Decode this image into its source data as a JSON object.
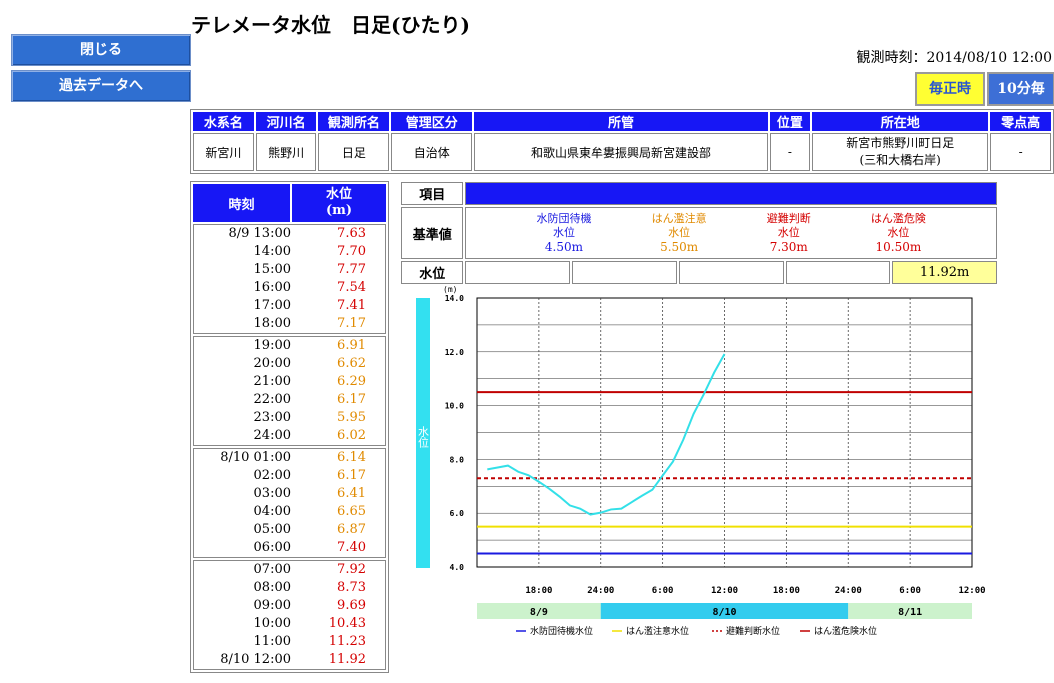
{
  "sidebar": {
    "close_label": "閉じる",
    "past_label": "過去データへ"
  },
  "page": {
    "title": "テレメータ水位　日足(ひたり)",
    "observed_at": "観測時刻：2014/08/10 12:00"
  },
  "toggle": {
    "hourly_label": "毎正時",
    "tenmin_label": "10分毎"
  },
  "info": {
    "headers": [
      "水系名",
      "河川名",
      "観測所名",
      "管理区分",
      "所管",
      "位置",
      "所在地",
      "零点高"
    ],
    "values": [
      "新宮川",
      "熊野川",
      "日足",
      "自治体",
      "和歌山県東牟婁振興局新宮建設部",
      "-",
      "新宮市熊野川町日足\n(三和大橋右岸)",
      "-"
    ]
  },
  "levels_table": {
    "header_time": "時刻",
    "header_level": "水位\n(m)",
    "rows": [
      {
        "t": "8/9 13:00",
        "v": "7.63",
        "c": "#d40000"
      },
      {
        "t": "14:00",
        "v": "7.70",
        "c": "#d40000"
      },
      {
        "t": "15:00",
        "v": "7.77",
        "c": "#d40000"
      },
      {
        "t": "16:00",
        "v": "7.54",
        "c": "#d40000"
      },
      {
        "t": "17:00",
        "v": "7.41",
        "c": "#d40000"
      },
      {
        "t": "18:00",
        "v": "7.17",
        "c": "#e08a00"
      },
      {
        "t": "19:00",
        "v": "6.91",
        "c": "#e08a00"
      },
      {
        "t": "20:00",
        "v": "6.62",
        "c": "#e08a00"
      },
      {
        "t": "21:00",
        "v": "6.29",
        "c": "#e08a00"
      },
      {
        "t": "22:00",
        "v": "6.17",
        "c": "#e08a00"
      },
      {
        "t": "23:00",
        "v": "5.95",
        "c": "#e08a00"
      },
      {
        "t": "24:00",
        "v": "6.02",
        "c": "#e08a00"
      },
      {
        "t": "8/10 01:00",
        "v": "6.14",
        "c": "#e08a00"
      },
      {
        "t": "02:00",
        "v": "6.17",
        "c": "#e08a00"
      },
      {
        "t": "03:00",
        "v": "6.41",
        "c": "#e08a00"
      },
      {
        "t": "04:00",
        "v": "6.65",
        "c": "#e08a00"
      },
      {
        "t": "05:00",
        "v": "6.87",
        "c": "#e08a00"
      },
      {
        "t": "06:00",
        "v": "7.40",
        "c": "#d40000"
      },
      {
        "t": "07:00",
        "v": "7.92",
        "c": "#d40000"
      },
      {
        "t": "08:00",
        "v": "8.73",
        "c": "#d40000"
      },
      {
        "t": "09:00",
        "v": "9.69",
        "c": "#d40000"
      },
      {
        "t": "10:00",
        "v": "10.43",
        "c": "#d40000"
      },
      {
        "t": "11:00",
        "v": "11.23",
        "c": "#d40000"
      },
      {
        "t": "8/10 12:00",
        "v": "11.92",
        "c": "#d40000"
      }
    ]
  },
  "standards": {
    "item_label": "項目",
    "base_label": "基準値",
    "level_label": "水位",
    "items": [
      {
        "name": "水防団待機",
        "sub": "水位",
        "value": "4.50m",
        "color": "#1a1ae0"
      },
      {
        "name": "はん濫注意",
        "sub": "水位",
        "value": "5.50m",
        "color": "#e08a00"
      },
      {
        "name": "避難判断",
        "sub": "水位",
        "value": "7.30m",
        "color": "#d40000"
      },
      {
        "name": "はん濫危険",
        "sub": "水位",
        "value": "10.50m",
        "color": "#d40000"
      }
    ],
    "current_level": "11.92m",
    "current_bg": "#ffff9a"
  },
  "chart_data": {
    "type": "line",
    "yunit": "(m)",
    "ylabel": "水位",
    "ylim": [
      4.0,
      14.0
    ],
    "yticks": [
      "4.0",
      "6.0",
      "8.0",
      "10.0",
      "12.0",
      "14.0"
    ],
    "xticks": [
      "18:00",
      "24:00",
      "6:00",
      "12:00",
      "18:00",
      "24:00",
      "6:00",
      "12:00"
    ],
    "dates": [
      {
        "label": "8/9",
        "fill": "#ccf2cc"
      },
      {
        "label": "8/10",
        "fill": "#33ccee"
      },
      {
        "label": "8/11",
        "fill": "#ccf2cc"
      }
    ],
    "series": [
      {
        "name": "水位",
        "color": "#33e0e8",
        "x": [
          13,
          14,
          15,
          16,
          17,
          18,
          19,
          20,
          21,
          22,
          23,
          24,
          25,
          26,
          27,
          28,
          29,
          30,
          31,
          32,
          33,
          34,
          35,
          36
        ],
        "values": [
          7.63,
          7.7,
          7.77,
          7.54,
          7.41,
          7.17,
          6.91,
          6.62,
          6.29,
          6.17,
          5.95,
          6.02,
          6.14,
          6.17,
          6.41,
          6.65,
          6.87,
          7.4,
          7.92,
          8.73,
          9.69,
          10.43,
          11.23,
          11.92
        ]
      }
    ],
    "thresholds": [
      {
        "name": "水防団待機水位",
        "value": 4.5,
        "color": "#1a1ae0",
        "dash": false
      },
      {
        "name": "はん濫注意水位",
        "value": 5.5,
        "color": "#f0e000",
        "dash": false
      },
      {
        "name": "避難判断水位",
        "value": 7.3,
        "color": "#c00000",
        "dash": true
      },
      {
        "name": "はん濫危険水位",
        "value": 10.5,
        "color": "#c00000",
        "dash": false
      }
    ],
    "xrange_hours": [
      12,
      60
    ]
  }
}
